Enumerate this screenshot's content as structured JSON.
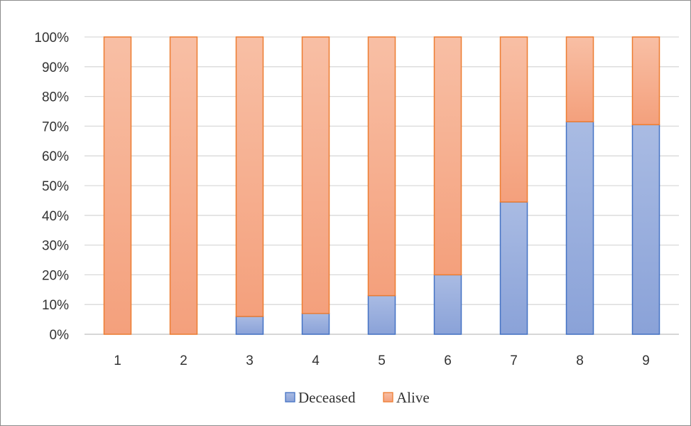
{
  "chart_data": {
    "type": "bar",
    "stacked": "percent",
    "categories": [
      "1",
      "2",
      "3",
      "4",
      "5",
      "6",
      "7",
      "8",
      "9"
    ],
    "series": [
      {
        "name": "Deceased",
        "values": [
          0,
          0,
          6,
          7,
          13,
          20,
          44.5,
          71.5,
          70.5
        ]
      },
      {
        "name": "Alive",
        "values": [
          100,
          100,
          94,
          93,
          87,
          80,
          55.5,
          28.5,
          29.5
        ]
      }
    ],
    "y_ticks": [
      "0%",
      "10%",
      "20%",
      "30%",
      "40%",
      "50%",
      "60%",
      "70%",
      "80%",
      "90%",
      "100%"
    ],
    "ylim": [
      0,
      100
    ],
    "grid": true,
    "legend_position": "bottom",
    "colors": {
      "Deceased": "#95aada",
      "Deceased_border": "#4472c4",
      "Alive": "#f6a886",
      "Alive_border": "#ed7d31"
    }
  }
}
